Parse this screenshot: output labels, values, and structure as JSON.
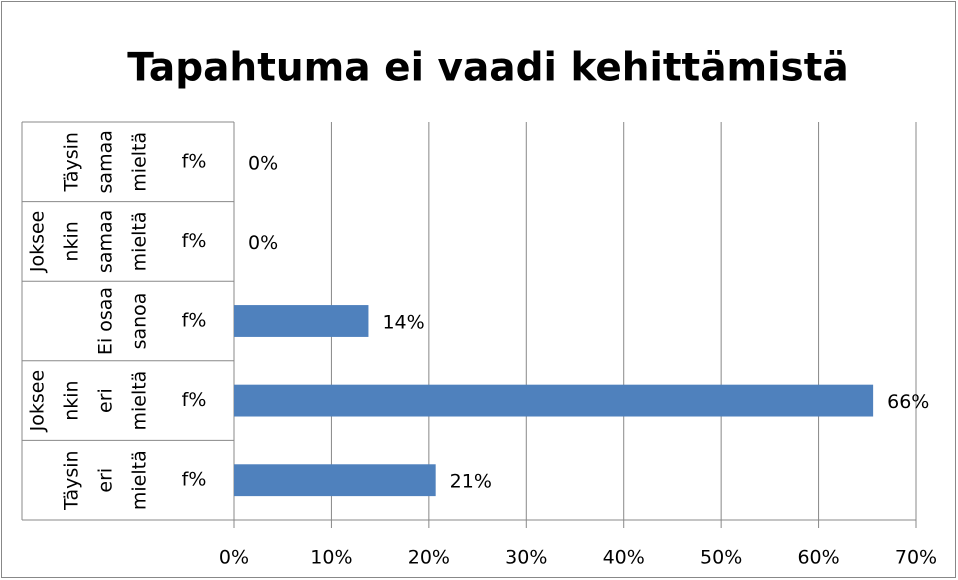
{
  "chart_data": {
    "type": "bar",
    "orientation": "horizontal",
    "title": "Tapahtuma ei vaadi kehittämistä",
    "groups": [
      [
        "Täysin",
        "samaa",
        "mieltä"
      ],
      [
        "Joksee",
        "nkin",
        "samaa",
        "mieltä"
      ],
      [
        "Ei osaa",
        "sanoa"
      ],
      [
        "Joksee",
        "nkin",
        "eri",
        "mieltä"
      ],
      [
        "Täysin",
        "eri",
        "mieltä"
      ]
    ],
    "categories": [
      "f%",
      "f%",
      "f%",
      "f%",
      "f%"
    ],
    "values": [
      0,
      0,
      13.8,
      65.6,
      20.7
    ],
    "value_labels": [
      "0%",
      "0%",
      "14%",
      "66%",
      "21%"
    ],
    "color": "#4f81bd",
    "xlim": [
      0,
      70
    ],
    "xticks": [
      {
        "value": 0,
        "label": "0%"
      },
      {
        "value": 10,
        "label": "10%"
      },
      {
        "value": 20,
        "label": "20%"
      },
      {
        "value": 30,
        "label": "30%"
      },
      {
        "value": 40,
        "label": "40%"
      },
      {
        "value": 50,
        "label": "50%"
      },
      {
        "value": 60,
        "label": "60%"
      },
      {
        "value": 70,
        "label": "70%"
      }
    ],
    "grid": true
  }
}
